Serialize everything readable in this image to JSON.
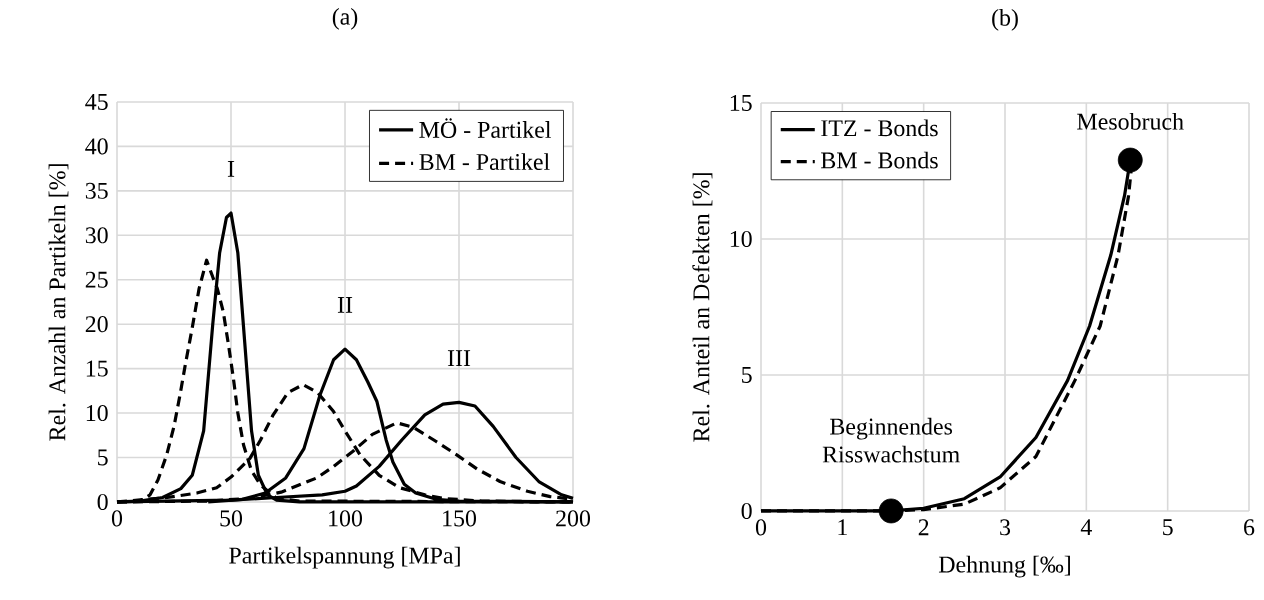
{
  "chart_data": [
    {
      "type": "line",
      "title": "(a)",
      "xlabel": "Partikelspannung [MPa]",
      "ylabel": "Rel. Anzahl an Partikeln [%]",
      "xlim": [
        0,
        200
      ],
      "xticks": [
        0,
        50,
        100,
        150,
        200
      ],
      "ylim": [
        0,
        45
      ],
      "yticks": [
        0,
        5,
        10,
        15,
        20,
        25,
        30,
        35,
        40,
        45
      ],
      "grid": true,
      "legend": "top right",
      "marker": "none",
      "series": [
        {
          "name": "MÖ - Partikel",
          "color": "#000000",
          "line_style": "solid",
          "x": [
            0,
            10,
            20,
            28,
            33,
            38,
            42,
            45,
            48,
            50,
            53,
            56,
            59,
            62,
            66,
            70,
            80,
            200
          ],
          "values": [
            0,
            0.1,
            0.5,
            1.5,
            3,
            8,
            20,
            28,
            32,
            32.5,
            28,
            18,
            8,
            3,
            0.8,
            0.2,
            0,
            0
          ]
        },
        {
          "color": "#000000",
          "line_style": "solid",
          "x": [
            40,
            55,
            65,
            74,
            82,
            89,
            95,
            100,
            105,
            110,
            114,
            118,
            121,
            126,
            131,
            140,
            150,
            200
          ],
          "values": [
            0,
            0.3,
            1,
            2.7,
            6,
            12,
            16,
            17.2,
            16,
            13.5,
            11.3,
            7,
            4.5,
            2,
            1,
            0.3,
            0.1,
            0
          ]
        },
        {
          "color": "#000000",
          "line_style": "solid",
          "x": [
            0,
            50,
            70,
            90,
            100,
            105,
            115,
            125,
            135,
            143,
            150,
            157,
            165,
            175,
            185,
            195,
            200
          ],
          "values": [
            0,
            0.2,
            0.5,
            0.8,
            1.2,
            1.8,
            4,
            7,
            9.8,
            11,
            11.2,
            10.8,
            8.5,
            5,
            2.3,
            0.8,
            0.4
          ]
        },
        {
          "name": "BM - Partikel",
          "color": "#000000",
          "line_style": "dashed",
          "x": [
            0,
            10,
            14.5,
            18,
            21.8,
            25,
            27.6,
            30,
            33,
            36,
            39.3,
            42,
            44,
            46.6,
            49,
            51,
            53,
            55.5,
            59,
            63,
            70,
            80,
            200
          ],
          "values": [
            0,
            0.1,
            0.8,
            2.5,
            5.3,
            8.5,
            12,
            15.5,
            19.6,
            24,
            27.2,
            25.3,
            24,
            21.4,
            17.5,
            14,
            10,
            6.4,
            3.5,
            1.9,
            0.4,
            0.1,
            0
          ]
        },
        {
          "color": "#000000",
          "line_style": "dashed",
          "x": [
            0,
            22,
            35,
            43.7,
            50,
            58.3,
            63,
            68.5,
            75,
            81.6,
            88,
            94.9,
            100,
            106.6,
            115,
            124,
            135,
            143,
            160,
            200
          ],
          "values": [
            0,
            0.5,
            1,
            1.6,
            2.8,
            4.9,
            7,
            9.8,
            12.3,
            13.2,
            12.3,
            10.2,
            8,
            5.3,
            3,
            1.6,
            0.8,
            0.4,
            0.1,
            0
          ]
        },
        {
          "color": "#000000",
          "line_style": "dashed",
          "x": [
            0,
            40,
            58,
            72,
            87.6,
            95,
            103.5,
            112,
            122.7,
            130,
            140,
            149,
            158,
            168,
            180,
            190,
            200
          ],
          "values": [
            0,
            0.1,
            0.4,
            1.1,
            2.7,
            4,
            5.7,
            7.6,
            8.9,
            8.4,
            6.8,
            5.3,
            3.7,
            2.3,
            1.2,
            0.6,
            0.3
          ]
        }
      ],
      "annotations": [
        {
          "text": "I",
          "x": 50,
          "y": 32.5
        },
        {
          "text": "II",
          "x": 100,
          "y": 17.2
        },
        {
          "text": "III",
          "x": 150,
          "y": 11.2
        }
      ]
    },
    {
      "type": "line",
      "title": "(b)",
      "xlabel": "Dehnung [‰]",
      "ylabel": "Rel. Anteil an Defekten [%]",
      "xlim": [
        0,
        6
      ],
      "xticks": [
        0,
        1,
        2,
        3,
        4,
        5,
        6
      ],
      "ylim": [
        0,
        15
      ],
      "yticks": [
        0,
        5,
        10,
        15
      ],
      "grid": true,
      "legend": "top left",
      "marker": "none",
      "series": [
        {
          "name": "ITZ - Bonds",
          "color": "#000000",
          "line_style": "solid",
          "x": [
            0,
            1,
            1.6,
            2,
            2.5,
            2.94,
            3.38,
            3.77,
            4.04,
            4.3,
            4.47,
            4.54
          ],
          "values": [
            0,
            0,
            0,
            0.1,
            0.45,
            1.25,
            2.7,
            4.8,
            6.8,
            9.4,
            11.6,
            12.9
          ]
        },
        {
          "name": "BM - Bonds",
          "color": "#000000",
          "line_style": "dashed",
          "x": [
            0,
            1,
            1.6,
            2,
            2.5,
            2.94,
            3.38,
            3.86,
            4.17,
            4.39,
            4.52,
            4.56
          ],
          "values": [
            0,
            0,
            0,
            0.05,
            0.25,
            0.85,
            2.0,
            4.8,
            6.8,
            9.4,
            11.6,
            12.8
          ]
        },
        {
          "type": "scatter",
          "color": "#000000",
          "marker": "circle",
          "x": [
            1.6,
            4.54
          ],
          "values": [
            0,
            12.9
          ]
        }
      ],
      "annotations": [
        {
          "text": "Beginnendes Risswachstum",
          "x": 1.6,
          "y": 0
        },
        {
          "text": "Mesobruch",
          "x": 4.54,
          "y": 12.9
        }
      ]
    }
  ]
}
